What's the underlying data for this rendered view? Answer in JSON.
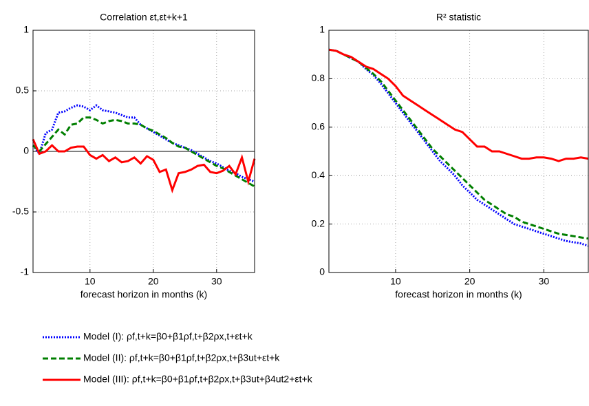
{
  "chart_data": [
    {
      "type": "line",
      "title": "Correlation εt,εt+k+1",
      "xlabel": "forecast horizon in months (k)",
      "x": [
        1,
        2,
        3,
        4,
        5,
        6,
        7,
        8,
        9,
        10,
        11,
        12,
        13,
        14,
        15,
        16,
        17,
        18,
        19,
        20,
        21,
        22,
        23,
        24,
        25,
        26,
        27,
        28,
        29,
        30,
        31,
        32,
        33,
        34,
        35,
        36
      ],
      "xlim": [
        1,
        36
      ],
      "xticks": [
        10,
        20,
        30
      ],
      "ylim": [
        -1,
        1
      ],
      "yticks": [
        -1,
        -0.5,
        0,
        0.5,
        1
      ],
      "grid": true,
      "zero_line": true,
      "series": [
        {
          "name": "Model (I): ρf,t+k=β0+β1ρf,t+β2ρx,t+εt+k",
          "color": "#0000ff",
          "style": "dotted",
          "values": [
            0.05,
            -0.02,
            0.15,
            0.18,
            0.32,
            0.33,
            0.36,
            0.38,
            0.37,
            0.34,
            0.38,
            0.34,
            0.33,
            0.32,
            0.3,
            0.28,
            0.28,
            0.22,
            0.19,
            0.16,
            0.13,
            0.1,
            0.07,
            0.05,
            0.03,
            0.01,
            -0.02,
            -0.05,
            -0.08,
            -0.1,
            -0.13,
            -0.16,
            -0.18,
            -0.21,
            -0.23,
            -0.25
          ]
        },
        {
          "name": "Model (II): ρf,t+k=β0+β1ρf,t+β2ρx,t+β3ut+εt+k",
          "color": "#007f00",
          "style": "dashed",
          "values": [
            0.05,
            0.0,
            0.06,
            0.12,
            0.18,
            0.14,
            0.22,
            0.23,
            0.28,
            0.28,
            0.26,
            0.23,
            0.25,
            0.26,
            0.25,
            0.23,
            0.23,
            0.22,
            0.19,
            0.17,
            0.14,
            0.11,
            0.07,
            0.04,
            0.03,
            0.0,
            -0.03,
            -0.06,
            -0.09,
            -0.12,
            -0.14,
            -0.17,
            -0.2,
            -0.23,
            -0.26,
            -0.29
          ]
        },
        {
          "name": "Model (III): ρf,t+k=β0+β1ρf,t+β2ρx,t+β3ut+β4ut2+εt+k",
          "color": "#ff0000",
          "style": "solid",
          "values": [
            0.1,
            -0.02,
            0.0,
            0.05,
            0.0,
            0.0,
            0.03,
            0.04,
            0.04,
            -0.03,
            -0.06,
            -0.03,
            -0.08,
            -0.05,
            -0.09,
            -0.08,
            -0.05,
            -0.1,
            -0.04,
            -0.07,
            -0.17,
            -0.15,
            -0.32,
            -0.18,
            -0.17,
            -0.15,
            -0.12,
            -0.11,
            -0.17,
            -0.18,
            -0.16,
            -0.12,
            -0.19,
            -0.05,
            -0.25,
            -0.06
          ]
        }
      ]
    },
    {
      "type": "line",
      "title": "R² statistic",
      "xlabel": "forecast horizon in months (k)",
      "x": [
        1,
        2,
        3,
        4,
        5,
        6,
        7,
        8,
        9,
        10,
        11,
        12,
        13,
        14,
        15,
        16,
        17,
        18,
        19,
        20,
        21,
        22,
        23,
        24,
        25,
        26,
        27,
        28,
        29,
        30,
        31,
        32,
        33,
        34,
        35,
        36
      ],
      "xlim": [
        1,
        36
      ],
      "xticks": [
        10,
        20,
        30
      ],
      "ylim": [
        0,
        1
      ],
      "yticks": [
        0,
        0.2,
        0.4,
        0.6,
        0.8,
        1
      ],
      "grid": true,
      "series": [
        {
          "color": "#0000ff",
          "style": "dotted",
          "values": [
            0.92,
            0.915,
            0.9,
            0.885,
            0.87,
            0.84,
            0.815,
            0.78,
            0.74,
            0.7,
            0.66,
            0.62,
            0.58,
            0.54,
            0.5,
            0.46,
            0.43,
            0.4,
            0.36,
            0.33,
            0.3,
            0.28,
            0.26,
            0.24,
            0.22,
            0.2,
            0.19,
            0.18,
            0.17,
            0.16,
            0.15,
            0.14,
            0.13,
            0.125,
            0.12,
            0.11
          ]
        },
        {
          "color": "#007f00",
          "style": "dashed",
          "values": [
            0.92,
            0.915,
            0.9,
            0.885,
            0.87,
            0.845,
            0.82,
            0.79,
            0.75,
            0.71,
            0.67,
            0.63,
            0.59,
            0.55,
            0.51,
            0.48,
            0.45,
            0.42,
            0.39,
            0.36,
            0.33,
            0.3,
            0.28,
            0.26,
            0.24,
            0.23,
            0.21,
            0.2,
            0.19,
            0.18,
            0.17,
            0.16,
            0.155,
            0.15,
            0.145,
            0.14
          ]
        },
        {
          "color": "#ff0000",
          "style": "solid",
          "values": [
            0.92,
            0.915,
            0.9,
            0.89,
            0.87,
            0.85,
            0.84,
            0.82,
            0.8,
            0.77,
            0.73,
            0.71,
            0.69,
            0.67,
            0.65,
            0.63,
            0.61,
            0.59,
            0.58,
            0.55,
            0.52,
            0.52,
            0.5,
            0.5,
            0.49,
            0.48,
            0.47,
            0.47,
            0.475,
            0.475,
            0.47,
            0.46,
            0.47,
            0.47,
            0.475,
            0.47
          ]
        }
      ]
    }
  ]
}
